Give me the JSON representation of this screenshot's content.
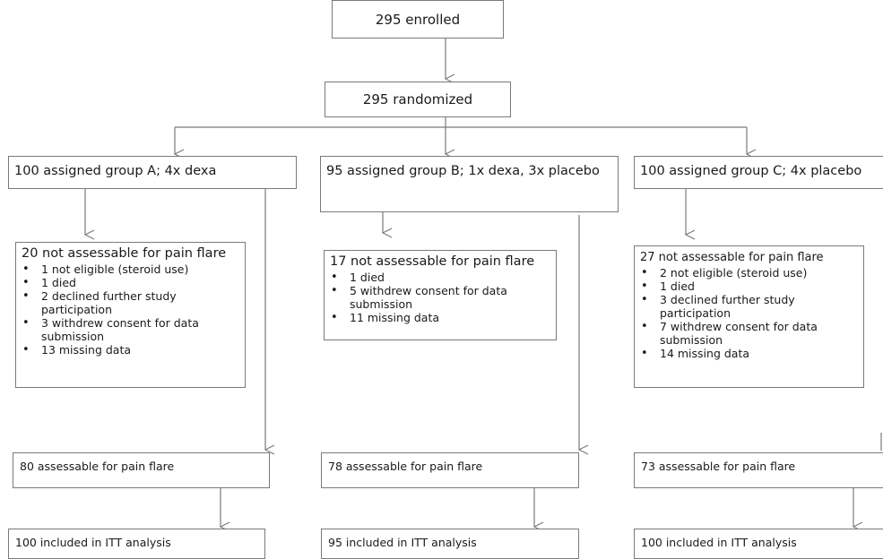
{
  "enrolled": "295 enrolled",
  "randomized": "295 randomized",
  "groups": [
    {
      "header": "100 assigned group A; 4x dexa",
      "excluded": {
        "title": "20 not assessable for pain flare",
        "items": [
          "1 not eligible (steroid use)",
          "1 died",
          "2 declined further study participation",
          "3 withdrew consent for data submission",
          "13 missing data"
        ]
      },
      "assessable": "80 assessable for pain flare",
      "itt": "100 included in ITT analysis"
    },
    {
      "header": "95 assigned group B; 1x dexa, 3x placebo",
      "excluded": {
        "title": "17 not assessable for pain flare",
        "items": [
          "1 died",
          "5 withdrew consent for data submission",
          "11 missing data"
        ]
      },
      "assessable": "78 assessable for pain flare",
      "itt": "95 included in ITT analysis"
    },
    {
      "header": "100 assigned group C; 4x placebo",
      "excluded": {
        "title": "27 not assessable for pain flare",
        "items": [
          "2 not eligible (steroid use)",
          "1 died",
          "3 declined further study participation",
          "7 withdrew consent for data submission",
          "14 missing data"
        ]
      },
      "assessable": "73 assessable for pain flare",
      "itt": "100 included in ITT analysis"
    }
  ]
}
